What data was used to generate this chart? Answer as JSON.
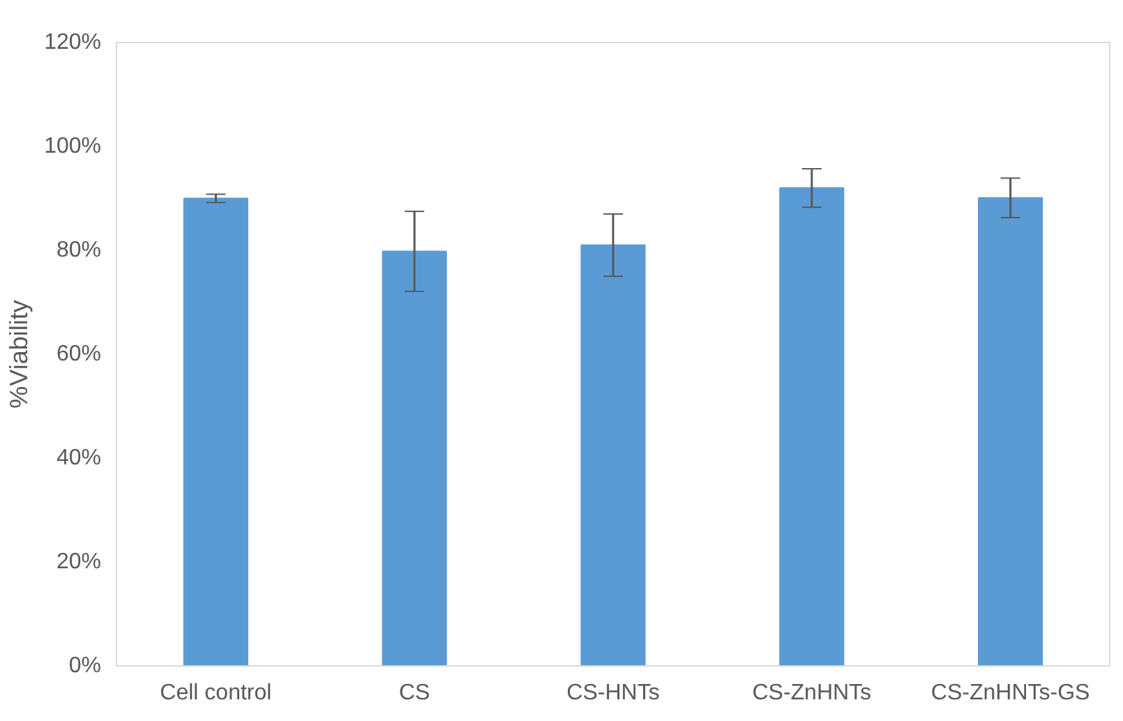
{
  "chart_data": {
    "type": "bar",
    "ylabel": "%Viability",
    "categories": [
      "Cell control",
      "CS",
      "CS-HNTs",
      "CS-ZnHNTs",
      "CS-ZnHNTs-GS"
    ],
    "values": [
      90.0,
      79.8,
      81.0,
      92.0,
      90.1
    ],
    "errors": [
      0.8,
      7.7,
      6.0,
      3.7,
      3.8
    ],
    "color": "#5b9bd5",
    "ylim": [
      0,
      120
    ],
    "yticks": [
      {
        "value": 0,
        "label": "0%"
      },
      {
        "value": 20,
        "label": "20%"
      },
      {
        "value": 40,
        "label": "40%"
      },
      {
        "value": 60,
        "label": "60%"
      },
      {
        "value": 80,
        "label": "80%"
      },
      {
        "value": 100,
        "label": "100%"
      },
      {
        "value": 120,
        "label": "120%"
      }
    ],
    "grid": false
  }
}
